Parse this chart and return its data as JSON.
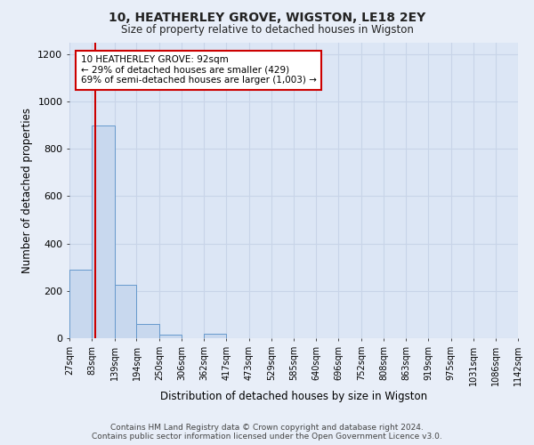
{
  "title": "10, HEATHERLEY GROVE, WIGSTON, LE18 2EY",
  "subtitle": "Size of property relative to detached houses in Wigston",
  "xlabel": "Distribution of detached houses by size in Wigston",
  "ylabel": "Number of detached properties",
  "bar_color": "#c8d8ee",
  "bar_edge_color": "#6699cc",
  "bin_edges": [
    27,
    83,
    139,
    194,
    250,
    306,
    362,
    417,
    473,
    529,
    585,
    640,
    696,
    752,
    808,
    863,
    919,
    975,
    1031,
    1086,
    1142
  ],
  "bar_heights": [
    290,
    900,
    225,
    60,
    15,
    0,
    20,
    0,
    0,
    0,
    0,
    0,
    0,
    0,
    0,
    0,
    0,
    0,
    0,
    0
  ],
  "tick_labels": [
    "27sqm",
    "83sqm",
    "139sqm",
    "194sqm",
    "250sqm",
    "306sqm",
    "362sqm",
    "417sqm",
    "473sqm",
    "529sqm",
    "585sqm",
    "640sqm",
    "696sqm",
    "752sqm",
    "808sqm",
    "863sqm",
    "919sqm",
    "975sqm",
    "1031sqm",
    "1086sqm",
    "1142sqm"
  ],
  "property_size": 92,
  "annotation_line1": "10 HEATHERLEY GROVE: 92sqm",
  "annotation_line2": "← 29% of detached houses are smaller (429)",
  "annotation_line3": "69% of semi-detached houses are larger (1,003) →",
  "annotation_box_color": "#ffffff",
  "annotation_box_edge_color": "#cc0000",
  "red_line_color": "#cc0000",
  "ylim": [
    0,
    1250
  ],
  "yticks": [
    0,
    200,
    400,
    600,
    800,
    1000,
    1200
  ],
  "footnote": "Contains HM Land Registry data © Crown copyright and database right 2024.\nContains public sector information licensed under the Open Government Licence v3.0.",
  "bg_color": "#e8eef8",
  "plot_bg_color": "#dce6f5",
  "grid_color": "#c8d4e8",
  "title_fontsize": 10,
  "subtitle_fontsize": 8.5
}
